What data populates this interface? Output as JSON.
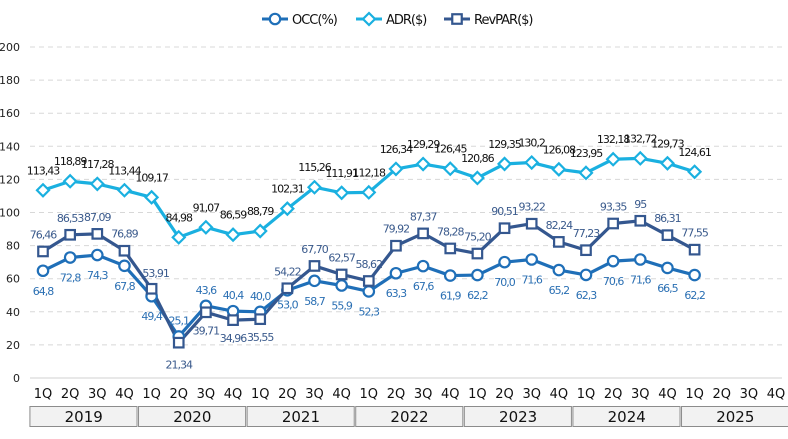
{
  "chart_data": {
    "type": "line",
    "title": "",
    "xlabel": "",
    "ylabel": "",
    "ylim": [
      0,
      200
    ],
    "yticks": [
      0,
      20,
      40,
      60,
      80,
      100,
      120,
      140,
      160,
      180,
      200
    ],
    "grid": true,
    "legend_position": "top-center",
    "years": [
      "2019",
      "2020",
      "2021",
      "2022",
      "2023",
      "2024",
      "2025"
    ],
    "quarters": [
      "1Q",
      "2Q",
      "3Q",
      "4Q"
    ],
    "categories": [
      "2019 1Q",
      "2019 2Q",
      "2019 3Q",
      "2019 4Q",
      "2020 1Q",
      "2020 2Q",
      "2020 3Q",
      "2020 4Q",
      "2021 1Q",
      "2021 2Q",
      "2021 3Q",
      "2021 4Q",
      "2022 1Q",
      "2022 2Q",
      "2022 3Q",
      "2022 4Q",
      "2023 1Q",
      "2023 2Q",
      "2023 3Q",
      "2023 4Q",
      "2024 1Q",
      "2024 2Q",
      "2024 3Q",
      "2024 4Q",
      "2025 1Q",
      "2025 2Q",
      "2025 3Q",
      "2025 4Q"
    ],
    "series": [
      {
        "name": "OCC(%)",
        "key": "occ",
        "color": "#1f6fb8",
        "label_color": "#2a6fb3",
        "marker": "circle",
        "values": [
          64.8,
          72.8,
          74.3,
          67.8,
          49.4,
          25.1,
          43.6,
          40.4,
          40.0,
          53.0,
          58.7,
          55.9,
          52.3,
          63.3,
          67.6,
          61.9,
          62.2,
          70.0,
          71.6,
          65.2,
          62.3,
          70.6,
          71.6,
          66.5,
          62.2
        ],
        "labels": [
          "64,8",
          "72,8",
          "74,3",
          "67,8",
          "49,4",
          "25,1",
          "43,6",
          "40,4",
          "40,0",
          "53,0",
          "58,7",
          "55,9",
          "52,3",
          "63,3",
          "67,6",
          "61,9",
          "62,2",
          "70,0",
          "71,6",
          "65,2",
          "62,3",
          "70,6",
          "71,6",
          "66,5",
          "62,2"
        ]
      },
      {
        "name": "ADR($)",
        "key": "adr",
        "color": "#1ab0e0",
        "label_color": "#111111",
        "marker": "diamond",
        "values": [
          113.43,
          118.89,
          117.28,
          113.44,
          109.17,
          84.98,
          91.07,
          86.59,
          88.79,
          102.31,
          115.26,
          111.91,
          112.18,
          126.34,
          129.29,
          126.45,
          120.86,
          129.35,
          130.2,
          126.08,
          123.95,
          132.18,
          132.72,
          129.73,
          124.61
        ],
        "labels": [
          "113,43",
          "118,89",
          "117,28",
          "113,44",
          "109,17",
          "84,98",
          "91,07",
          "86,59",
          "88,79",
          "102,31",
          "115,26",
          "111,91",
          "112,18",
          "126,34",
          "129,29",
          "126,45",
          "120,86",
          "129,35",
          "130,2",
          "126,08",
          "123,95",
          "132,18",
          "132,72",
          "129,73",
          "124,61"
        ]
      },
      {
        "name": "RevPAR($)",
        "key": "rev",
        "color": "#34578f",
        "label_color": "#3a5a8c",
        "marker": "square",
        "values": [
          76.46,
          86.53,
          87.09,
          76.89,
          53.91,
          21.34,
          39.71,
          34.96,
          35.55,
          54.22,
          67.7,
          62.57,
          58.62,
          79.92,
          87.37,
          78.28,
          75.2,
          90.51,
          93.22,
          82.24,
          77.23,
          93.35,
          95,
          86.31,
          77.55
        ],
        "labels": [
          "76,46",
          "86,53",
          "87,09",
          "76,89",
          "53,91",
          "21,34",
          "39,71",
          "34,96",
          "35,55",
          "54,22",
          "67,70",
          "62,57",
          "58,62",
          "79,92",
          "87,37",
          "78,28",
          "75,20",
          "90,51",
          "93,22",
          "82,24",
          "77,23",
          "93,35",
          "95",
          "86,31",
          "77,55"
        ]
      }
    ]
  }
}
